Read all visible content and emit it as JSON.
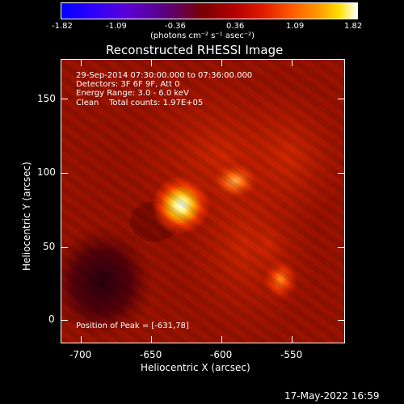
{
  "colorbar": {
    "tick_labels": [
      "-1.82",
      "-1.09",
      "-0.36",
      "0.36",
      "1.09",
      "1.82"
    ],
    "units": "(photons cm⁻² s⁻¹ asec⁻²)"
  },
  "plot": {
    "title": "Reconstructed RHESSI Image",
    "info_lines": [
      "29-Sep-2014 07:30:00.000 to 07:36:00.000",
      "Detectors: 3F 6F 9F, Att 0",
      "Energy Range: 3.0 - 6.0 keV",
      "Clean    Total counts: 1.97E+05"
    ],
    "peak_text": "Position of Peak = [-631,78]",
    "xlabel": "Heliocentric X (arcsec)",
    "ylabel": "Heliocentric Y (arcsec)",
    "x_tick_labels": [
      "-700",
      "-650",
      "-600",
      "-550"
    ],
    "y_tick_labels": [
      "0",
      "50",
      "100",
      "150"
    ]
  },
  "footer": {
    "timestamp": "17-May-2022 16:59"
  },
  "colors": {
    "background": "#000000",
    "map_base": "#9a1200",
    "frame": "#ffffff"
  }
}
